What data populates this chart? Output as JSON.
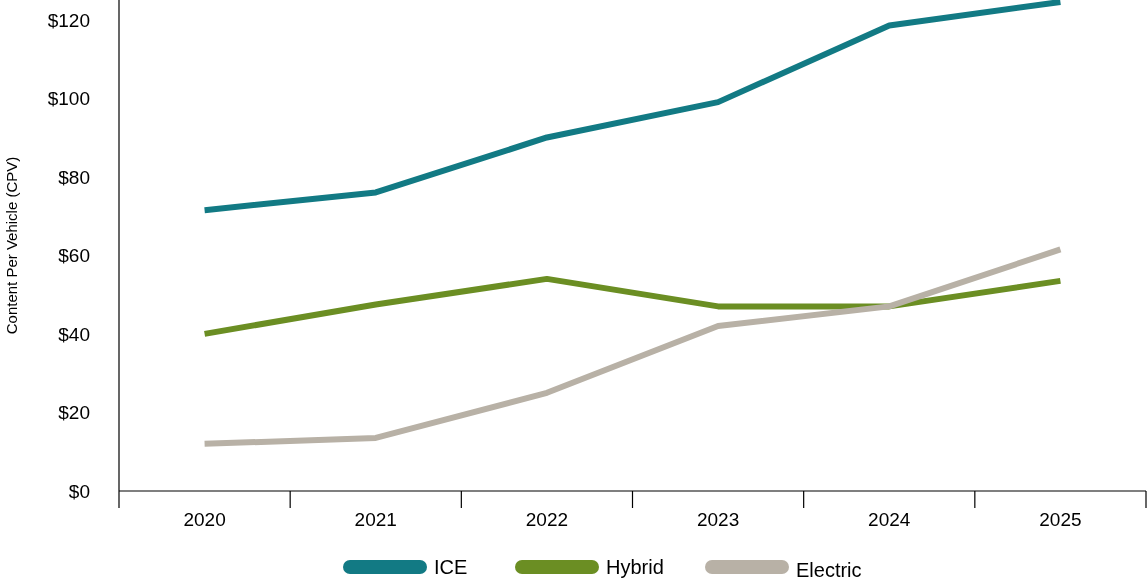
{
  "chart_data": {
    "type": "line",
    "ylabel": "Content Per Vehicle (CPV)",
    "categories": [
      "2020",
      "2021",
      "2022",
      "2023",
      "2024",
      "2025"
    ],
    "series": [
      {
        "name": "ICE",
        "color": "#127a84",
        "values": [
          71.5,
          76,
          90,
          99,
          118.5,
          124.5
        ]
      },
      {
        "name": "Hybrid",
        "color": "#6b8e23",
        "values": [
          40,
          47.5,
          54,
          47,
          47,
          53.5
        ]
      },
      {
        "name": "Electric",
        "color": "#b8b1a6",
        "values": [
          12,
          13.5,
          25,
          42,
          47,
          61.5
        ]
      }
    ],
    "ylim": [
      0,
      125
    ],
    "yticks": [
      {
        "value": 0,
        "label": "$0"
      },
      {
        "value": 20,
        "label": "$20"
      },
      {
        "value": 40,
        "label": "$40"
      },
      {
        "value": 60,
        "label": "$60"
      },
      {
        "value": 80,
        "label": "$80"
      },
      {
        "value": 100,
        "label": "$100"
      },
      {
        "value": 120,
        "label": "$120"
      }
    ],
    "grid": false,
    "legend": "bottom",
    "marker": "none",
    "line_style": "solid"
  }
}
